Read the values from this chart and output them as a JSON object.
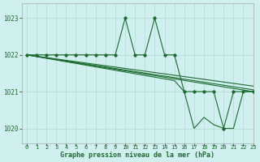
{
  "title": "Graphe pression niveau de la mer (hPa)",
  "background_color": "#cff0ee",
  "grid_color": "#b8ddd8",
  "line_color": "#1e6b30",
  "xlim": [
    -0.5,
    23
  ],
  "ylim": [
    1019.6,
    1023.4
  ],
  "yticks": [
    1020,
    1021,
    1022,
    1023
  ],
  "xticks": [
    0,
    1,
    2,
    3,
    4,
    5,
    6,
    7,
    8,
    9,
    10,
    11,
    12,
    13,
    14,
    15,
    16,
    17,
    18,
    19,
    20,
    21,
    22,
    23
  ],
  "line1_x": [
    0,
    1,
    2,
    3,
    4,
    5,
    6,
    7,
    8,
    9,
    10,
    11,
    12,
    13,
    14,
    15,
    16,
    17,
    18,
    19,
    20,
    21,
    22,
    23
  ],
  "line1_y": [
    1022,
    1022,
    1022,
    1022,
    1022,
    1022,
    1022,
    1022,
    1022,
    1022,
    1023,
    1022,
    1022,
    1023,
    1022,
    1022,
    1021,
    1021,
    1021,
    1021,
    1020,
    1021,
    1021,
    1021
  ],
  "line2_x": [
    0,
    23
  ],
  "line2_y": [
    1022,
    1021.0
  ],
  "line3_x": [
    0,
    23
  ],
  "line3_y": [
    1022,
    1021.05
  ],
  "line4_x": [
    0,
    23
  ],
  "line4_y": [
    1022,
    1021.15
  ],
  "line5_x": [
    0,
    15,
    16,
    17,
    18,
    19,
    20,
    21,
    22,
    23
  ],
  "line5_y": [
    1022,
    1021.3,
    1021.0,
    1020.0,
    1020.3,
    1020.1,
    1020.0,
    1020.0,
    1021.0,
    1021.0
  ],
  "xlabel": "Graphe pression niveau de la mer (hPa)"
}
